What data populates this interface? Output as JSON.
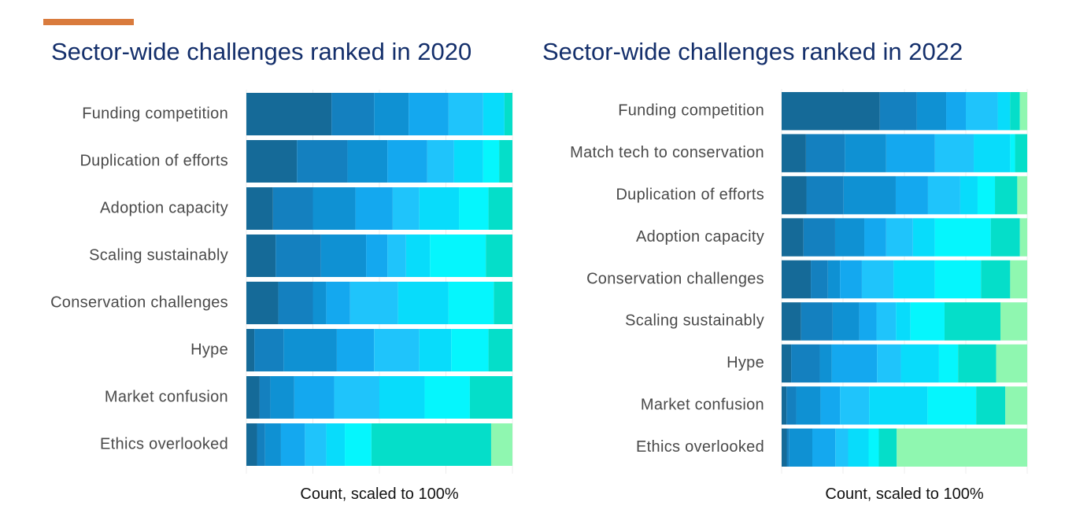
{
  "header": {
    "accent_color": "#d97b3d"
  },
  "palette": [
    "#156a98",
    "#1480bf",
    "#0f91d3",
    "#14a8ef",
    "#1fc4fb",
    "#08dcfb",
    "#05f6fd",
    "#05dec9",
    "#8ff7b0"
  ],
  "chart_data": [
    {
      "type": "bar",
      "stacked": true,
      "orientation": "horizontal",
      "title": "Sector-wide challenges ranked in 2020",
      "xlabel": "Count, scaled to 100%",
      "xlim": [
        0,
        100
      ],
      "categories": [
        "Funding competition",
        "Duplication of efforts",
        "Adoption capacity",
        "Scaling sustainably",
        "Conservation challenges",
        "Hype",
        "Market confusion",
        "Ethics overlooked"
      ],
      "values": [
        [
          32,
          16,
          13,
          15,
          13,
          8,
          0,
          3,
          0
        ],
        [
          19,
          19,
          15,
          15,
          10,
          11,
          6,
          5,
          0
        ],
        [
          10,
          15,
          16,
          14,
          10,
          15,
          11,
          9,
          0
        ],
        [
          11,
          17,
          17,
          8,
          7,
          9,
          21,
          10,
          0
        ],
        [
          12,
          13,
          5,
          9,
          18,
          19,
          17,
          7,
          0
        ],
        [
          3,
          11,
          20,
          14,
          17,
          12,
          14,
          9,
          0
        ],
        [
          5,
          4,
          9,
          15,
          17,
          17,
          17,
          16,
          0
        ],
        [
          4,
          3,
          6,
          9,
          8,
          7,
          10,
          45,
          8
        ]
      ]
    },
    {
      "type": "bar",
      "stacked": true,
      "orientation": "horizontal",
      "title": "Sector-wide challenges ranked in 2022",
      "xlabel": "Count, scaled to 100%",
      "xlim": [
        0,
        100
      ],
      "categories": [
        "Funding competition",
        "Match tech to conservation",
        "Duplication of efforts",
        "Adoption capacity",
        "Conservation challenges",
        "Scaling sustainably",
        "Hype",
        "Market confusion",
        "Ethics overlooked"
      ],
      "values": [
        [
          40,
          15,
          12,
          8,
          13,
          5,
          0,
          4,
          3
        ],
        [
          10,
          16,
          17,
          20,
          16,
          15,
          2,
          5,
          0
        ],
        [
          10,
          15,
          21,
          13,
          13,
          7,
          7,
          9,
          4
        ],
        [
          9,
          13,
          12,
          9,
          11,
          9,
          23,
          12,
          3
        ],
        [
          12,
          7,
          5,
          9,
          13,
          17,
          19,
          12,
          7
        ],
        [
          8,
          13,
          11,
          7,
          8,
          6,
          14,
          23,
          11
        ],
        [
          4,
          12,
          5,
          19,
          10,
          16,
          8,
          16,
          13
        ],
        [
          2,
          4,
          10,
          8,
          12,
          24,
          20,
          12,
          9
        ],
        [
          2,
          1,
          9,
          9,
          5,
          8,
          4,
          7,
          51
        ]
      ]
    }
  ]
}
